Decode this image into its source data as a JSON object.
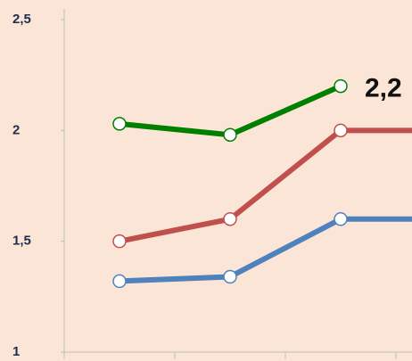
{
  "chart_data": {
    "type": "line",
    "categories": [
      null,
      null,
      null,
      null
    ],
    "series": [
      {
        "color": "#4f81bd",
        "values": [
          1.32,
          1.34,
          1.6,
          1.6
        ]
      },
      {
        "color": "#c0504d",
        "values": [
          1.5,
          1.6,
          2.0,
          2.0
        ]
      },
      {
        "color": "#008000",
        "values": [
          2.03,
          1.98,
          2.2,
          null
        ],
        "value_labels": [
          null,
          null,
          "2,2",
          null
        ]
      }
    ],
    "ylim": [
      1,
      2.5
    ],
    "yticks": [
      1,
      {
        "value": 1.5,
        "label": "1,5"
      },
      2,
      {
        "value": 2.5,
        "label": "2,5"
      }
    ],
    "grid": false
  }
}
